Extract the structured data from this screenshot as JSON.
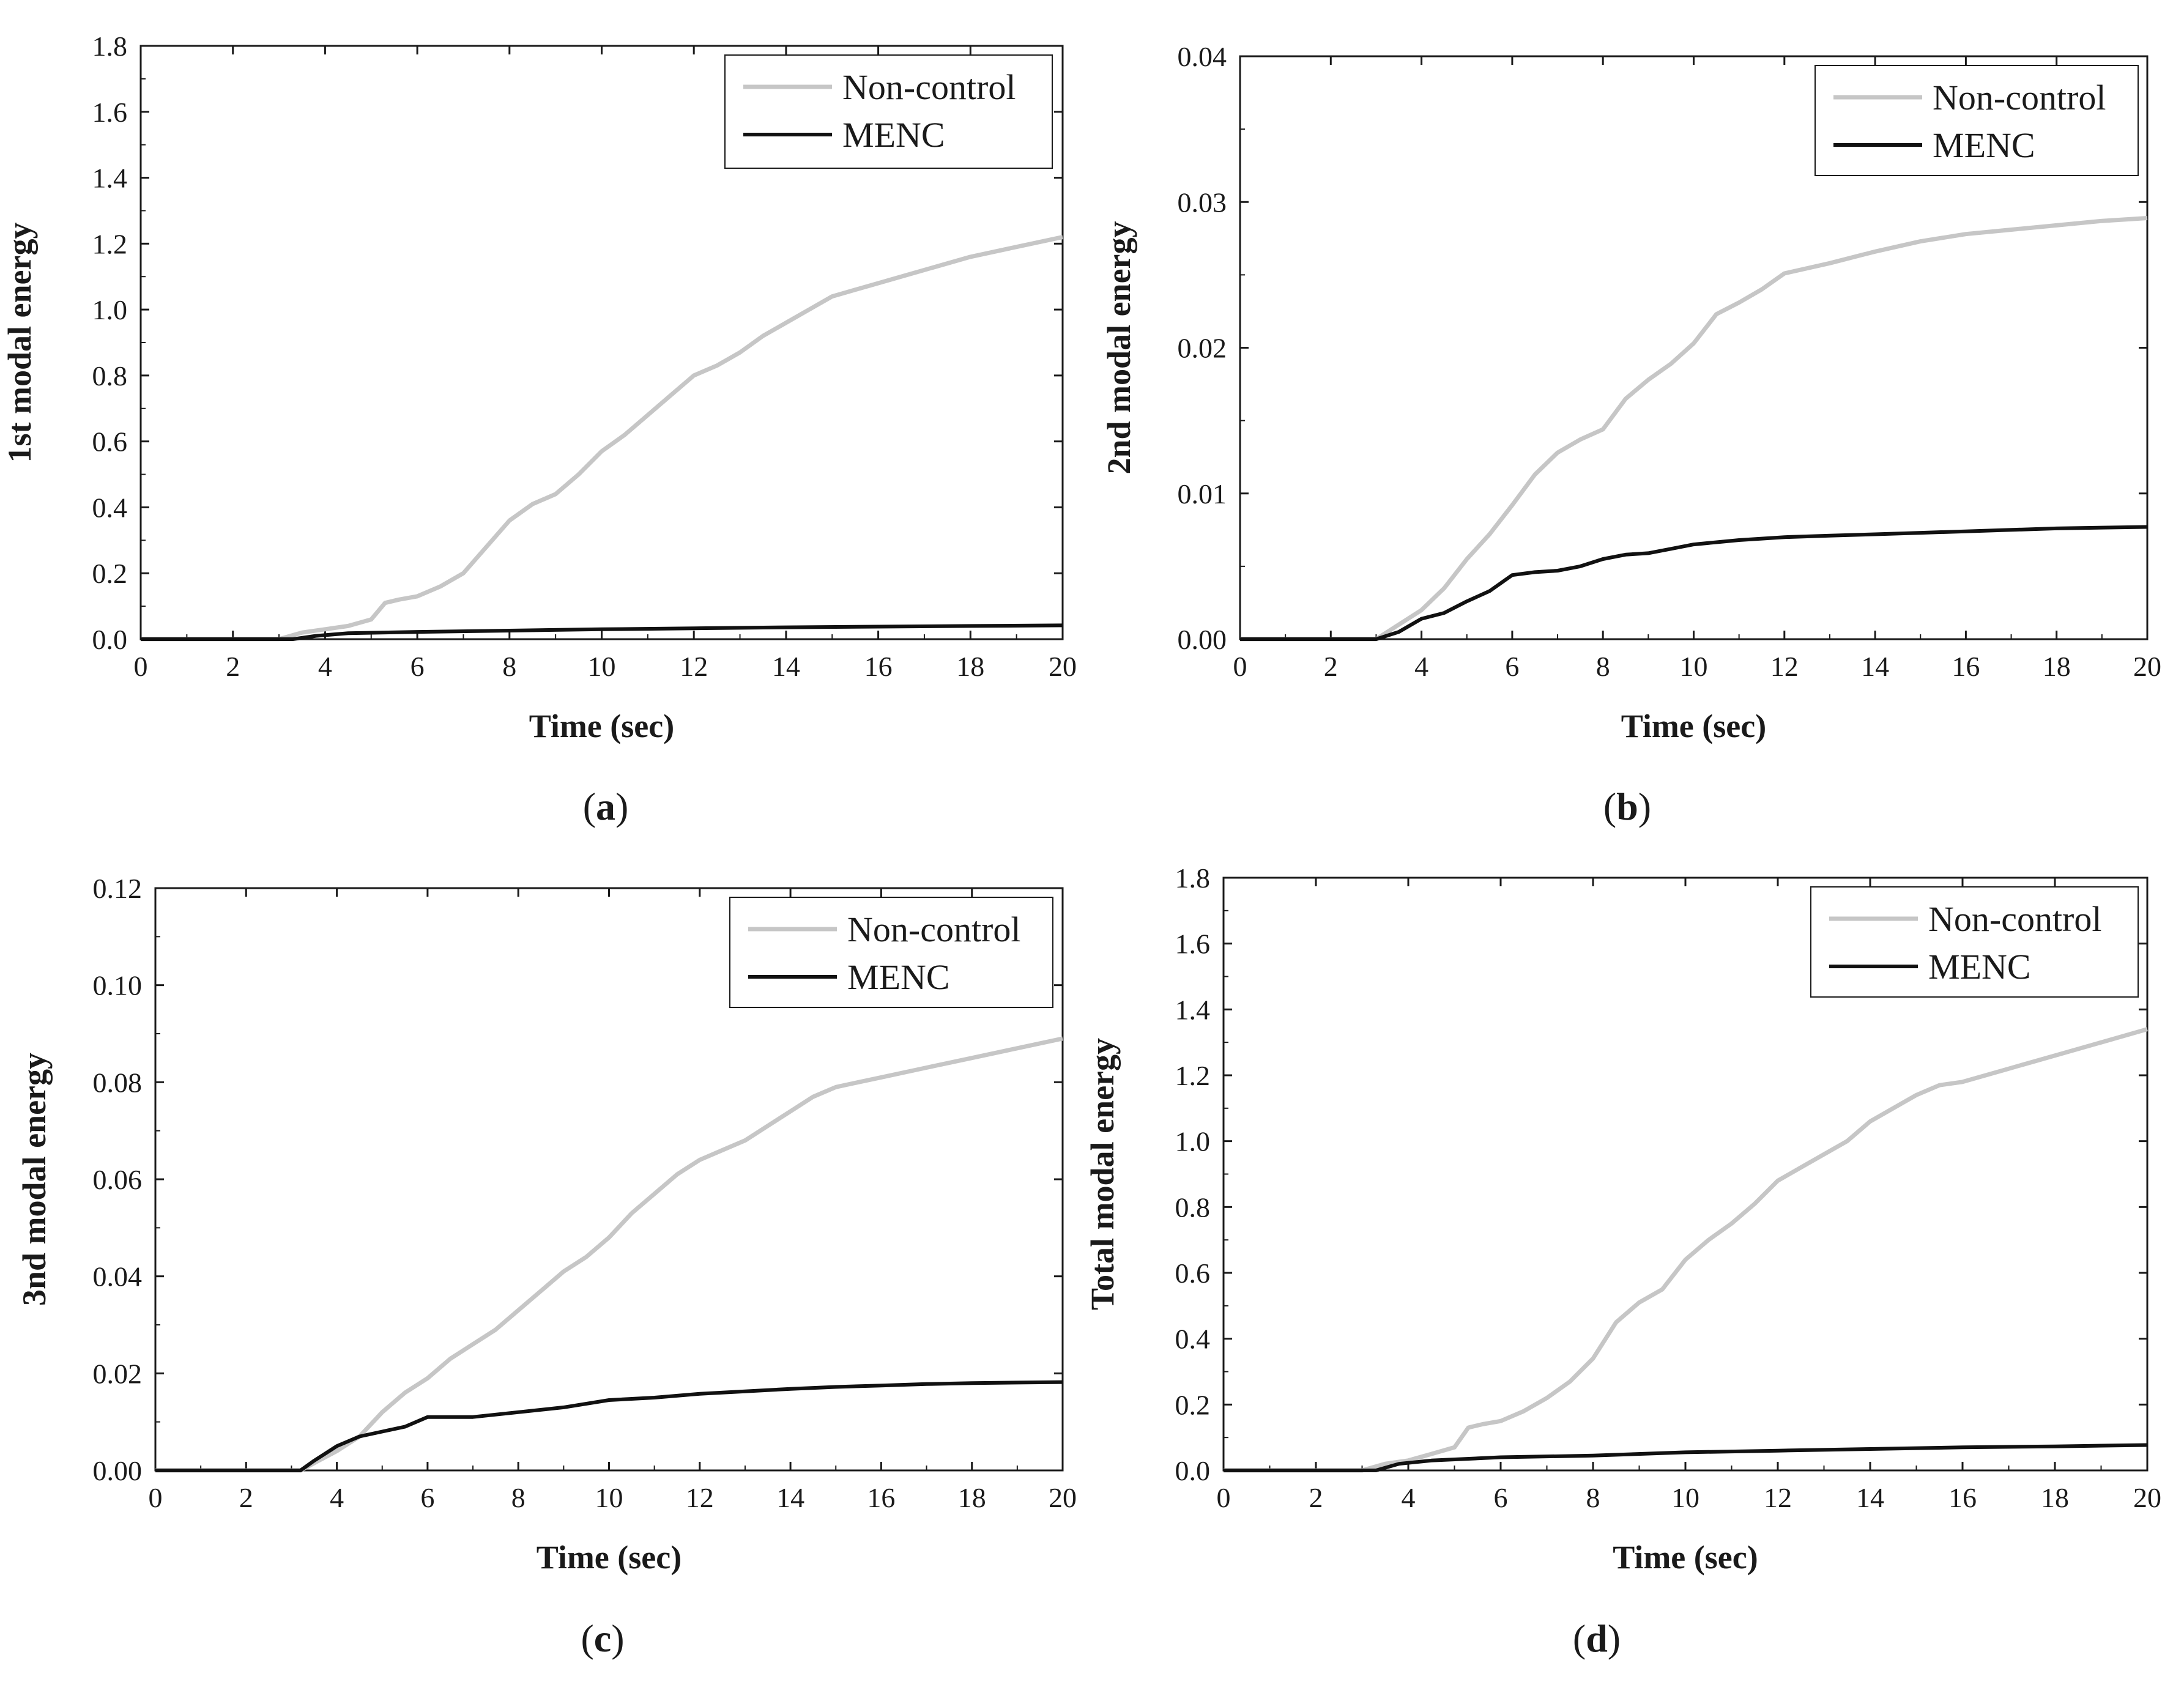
{
  "colors": {
    "non_control": "#c6c6c6",
    "menc": "#111111",
    "axis": "#1a1a1a"
  },
  "chart_data": [
    {
      "type": "line",
      "panel_label": "(a)",
      "title": "",
      "xlabel": "Time (sec)",
      "ylabel": "1st modal energy",
      "xlim": [
        0,
        20
      ],
      "ylim": [
        0,
        1.8
      ],
      "xticks": [
        "0",
        "2",
        "4",
        "6",
        "8",
        "10",
        "12",
        "14",
        "16",
        "18",
        "20"
      ],
      "yticks": [
        "0.0",
        "0.2",
        "0.4",
        "0.6",
        "0.8",
        "1.0",
        "1.2",
        "1.4",
        "1.6",
        "1.8"
      ],
      "legend": {
        "location": "top-right",
        "entries": [
          "Non-control",
          "MENC"
        ]
      },
      "series": [
        {
          "name": "Non-control",
          "x": [
            0,
            3.0,
            3.5,
            4.0,
            4.5,
            5.0,
            5.3,
            5.6,
            6.0,
            6.5,
            7.0,
            7.5,
            8.0,
            8.5,
            9.0,
            9.5,
            10.0,
            10.5,
            11.0,
            11.5,
            12.0,
            12.5,
            13.0,
            13.5,
            14.0,
            14.5,
            15.0,
            15.5,
            16.0,
            17.0,
            18.0,
            19.0,
            20.0
          ],
          "y": [
            0,
            0,
            0.02,
            0.03,
            0.04,
            0.06,
            0.11,
            0.12,
            0.13,
            0.16,
            0.2,
            0.28,
            0.36,
            0.41,
            0.44,
            0.5,
            0.57,
            0.62,
            0.68,
            0.74,
            0.8,
            0.83,
            0.87,
            0.92,
            0.96,
            1.0,
            1.04,
            1.06,
            1.08,
            1.12,
            1.16,
            1.19,
            1.22
          ]
        },
        {
          "name": "MENC",
          "x": [
            0,
            3.3,
            3.8,
            4.5,
            6.0,
            8.0,
            10.0,
            12.0,
            14.0,
            16.0,
            18.0,
            20.0
          ],
          "y": [
            0,
            0,
            0.01,
            0.018,
            0.022,
            0.026,
            0.03,
            0.033,
            0.036,
            0.038,
            0.04,
            0.042
          ]
        }
      ]
    },
    {
      "type": "line",
      "panel_label": "(b)",
      "title": "",
      "xlabel": "Time (sec)",
      "ylabel": "2nd modal energy",
      "xlim": [
        0,
        20
      ],
      "ylim": [
        0,
        0.04
      ],
      "xticks": [
        "0",
        "2",
        "4",
        "6",
        "8",
        "10",
        "12",
        "14",
        "16",
        "18",
        "20"
      ],
      "yticks": [
        "0.00",
        "0.01",
        "0.02",
        "0.03",
        "0.04"
      ],
      "legend": {
        "location": "top-right",
        "entries": [
          "Non-control",
          "MENC"
        ]
      },
      "series": [
        {
          "name": "Non-control",
          "x": [
            0,
            3.0,
            3.5,
            4.0,
            4.5,
            5.0,
            5.5,
            6.0,
            6.5,
            7.0,
            7.5,
            8.0,
            8.5,
            9.0,
            9.5,
            10.0,
            10.5,
            11.0,
            11.5,
            12.0,
            13.0,
            14.0,
            15.0,
            16.0,
            17.0,
            18.0,
            19.0,
            20.0
          ],
          "y": [
            0,
            0,
            0.001,
            0.002,
            0.0035,
            0.0055,
            0.0072,
            0.0092,
            0.0113,
            0.0128,
            0.0137,
            0.0144,
            0.0165,
            0.0178,
            0.0189,
            0.0203,
            0.0223,
            0.0231,
            0.024,
            0.0251,
            0.0258,
            0.0266,
            0.0273,
            0.0278,
            0.0281,
            0.0284,
            0.0287,
            0.0289
          ]
        },
        {
          "name": "MENC",
          "x": [
            0,
            3.0,
            3.5,
            4.0,
            4.5,
            5.0,
            5.5,
            6.0,
            6.5,
            7.0,
            7.5,
            8.0,
            8.5,
            9.0,
            9.5,
            10.0,
            11.0,
            12.0,
            13.0,
            14.0,
            15.0,
            16.0,
            18.0,
            20.0
          ],
          "y": [
            0,
            0,
            0.0005,
            0.0014,
            0.0018,
            0.0026,
            0.0033,
            0.0044,
            0.0046,
            0.0047,
            0.005,
            0.0055,
            0.0058,
            0.0059,
            0.0062,
            0.0065,
            0.0068,
            0.007,
            0.0071,
            0.0072,
            0.0073,
            0.0074,
            0.0076,
            0.0077
          ]
        }
      ]
    },
    {
      "type": "line",
      "panel_label": "(c)",
      "title": "",
      "xlabel": "Time (sec)",
      "ylabel": "3nd modal energy",
      "xlim": [
        0,
        20
      ],
      "ylim": [
        0,
        0.12
      ],
      "xticks": [
        "0",
        "2",
        "4",
        "6",
        "8",
        "10",
        "12",
        "14",
        "16",
        "18",
        "20"
      ],
      "yticks": [
        "0.00",
        "0.02",
        "0.04",
        "0.06",
        "0.08",
        "0.10",
        "0.12"
      ],
      "legend": {
        "location": "top-right",
        "entries": [
          "Non-control",
          "MENC"
        ]
      },
      "series": [
        {
          "name": "Non-control",
          "x": [
            0,
            3.2,
            3.6,
            4.0,
            4.5,
            5.0,
            5.5,
            6.0,
            6.5,
            7.0,
            7.5,
            8.0,
            8.5,
            9.0,
            9.5,
            10.0,
            10.5,
            11.0,
            11.5,
            12.0,
            12.5,
            13.0,
            13.5,
            14.0,
            14.5,
            15.0,
            15.5,
            16.0,
            17.0,
            18.0,
            19.0,
            20.0
          ],
          "y": [
            0,
            0,
            0.002,
            0.004,
            0.007,
            0.012,
            0.016,
            0.019,
            0.023,
            0.026,
            0.029,
            0.033,
            0.037,
            0.041,
            0.044,
            0.048,
            0.053,
            0.057,
            0.061,
            0.064,
            0.066,
            0.068,
            0.071,
            0.074,
            0.077,
            0.079,
            0.08,
            0.081,
            0.083,
            0.085,
            0.087,
            0.089
          ]
        },
        {
          "name": "MENC",
          "x": [
            0,
            3.2,
            3.5,
            4.0,
            4.5,
            5.0,
            5.5,
            6.0,
            7.0,
            8.0,
            9.0,
            10.0,
            11.0,
            12.0,
            13.0,
            14.0,
            15.0,
            16.0,
            17.0,
            18.0,
            19.0,
            20.0
          ],
          "y": [
            0,
            0,
            0.002,
            0.005,
            0.007,
            0.008,
            0.009,
            0.011,
            0.011,
            0.012,
            0.013,
            0.0145,
            0.015,
            0.0158,
            0.0163,
            0.0168,
            0.0172,
            0.0175,
            0.0178,
            0.018,
            0.0181,
            0.0182
          ]
        }
      ]
    },
    {
      "type": "line",
      "panel_label": "(d)",
      "title": "",
      "xlabel": "Time (sec)",
      "ylabel": "Total modal energy",
      "xlim": [
        0,
        20
      ],
      "ylim": [
        0,
        1.8
      ],
      "xticks": [
        "0",
        "2",
        "4",
        "6",
        "8",
        "10",
        "12",
        "14",
        "16",
        "18",
        "20"
      ],
      "yticks": [
        "0.0",
        "0.2",
        "0.4",
        "0.6",
        "0.8",
        "1.0",
        "1.2",
        "1.4",
        "1.6",
        "1.8"
      ],
      "legend": {
        "location": "top-right",
        "entries": [
          "Non-control",
          "MENC"
        ]
      },
      "series": [
        {
          "name": "Non-control",
          "x": [
            0,
            3.0,
            3.5,
            4.0,
            4.5,
            5.0,
            5.3,
            5.6,
            6.0,
            6.5,
            7.0,
            7.5,
            8.0,
            8.5,
            9.0,
            9.5,
            10.0,
            10.5,
            11.0,
            11.5,
            12.0,
            12.5,
            13.0,
            13.5,
            14.0,
            14.5,
            15.0,
            15.5,
            16.0,
            17.0,
            18.0,
            19.0,
            20.0
          ],
          "y": [
            0,
            0,
            0.02,
            0.03,
            0.05,
            0.07,
            0.13,
            0.14,
            0.15,
            0.18,
            0.22,
            0.27,
            0.34,
            0.45,
            0.51,
            0.55,
            0.64,
            0.7,
            0.75,
            0.81,
            0.88,
            0.92,
            0.96,
            1.0,
            1.06,
            1.1,
            1.14,
            1.17,
            1.18,
            1.22,
            1.26,
            1.3,
            1.34
          ]
        },
        {
          "name": "MENC",
          "x": [
            0,
            3.3,
            3.8,
            4.5,
            6.0,
            8.0,
            10.0,
            12.0,
            14.0,
            16.0,
            18.0,
            20.0
          ],
          "y": [
            0,
            0,
            0.02,
            0.03,
            0.04,
            0.045,
            0.055,
            0.06,
            0.065,
            0.07,
            0.073,
            0.077
          ]
        }
      ]
    }
  ]
}
